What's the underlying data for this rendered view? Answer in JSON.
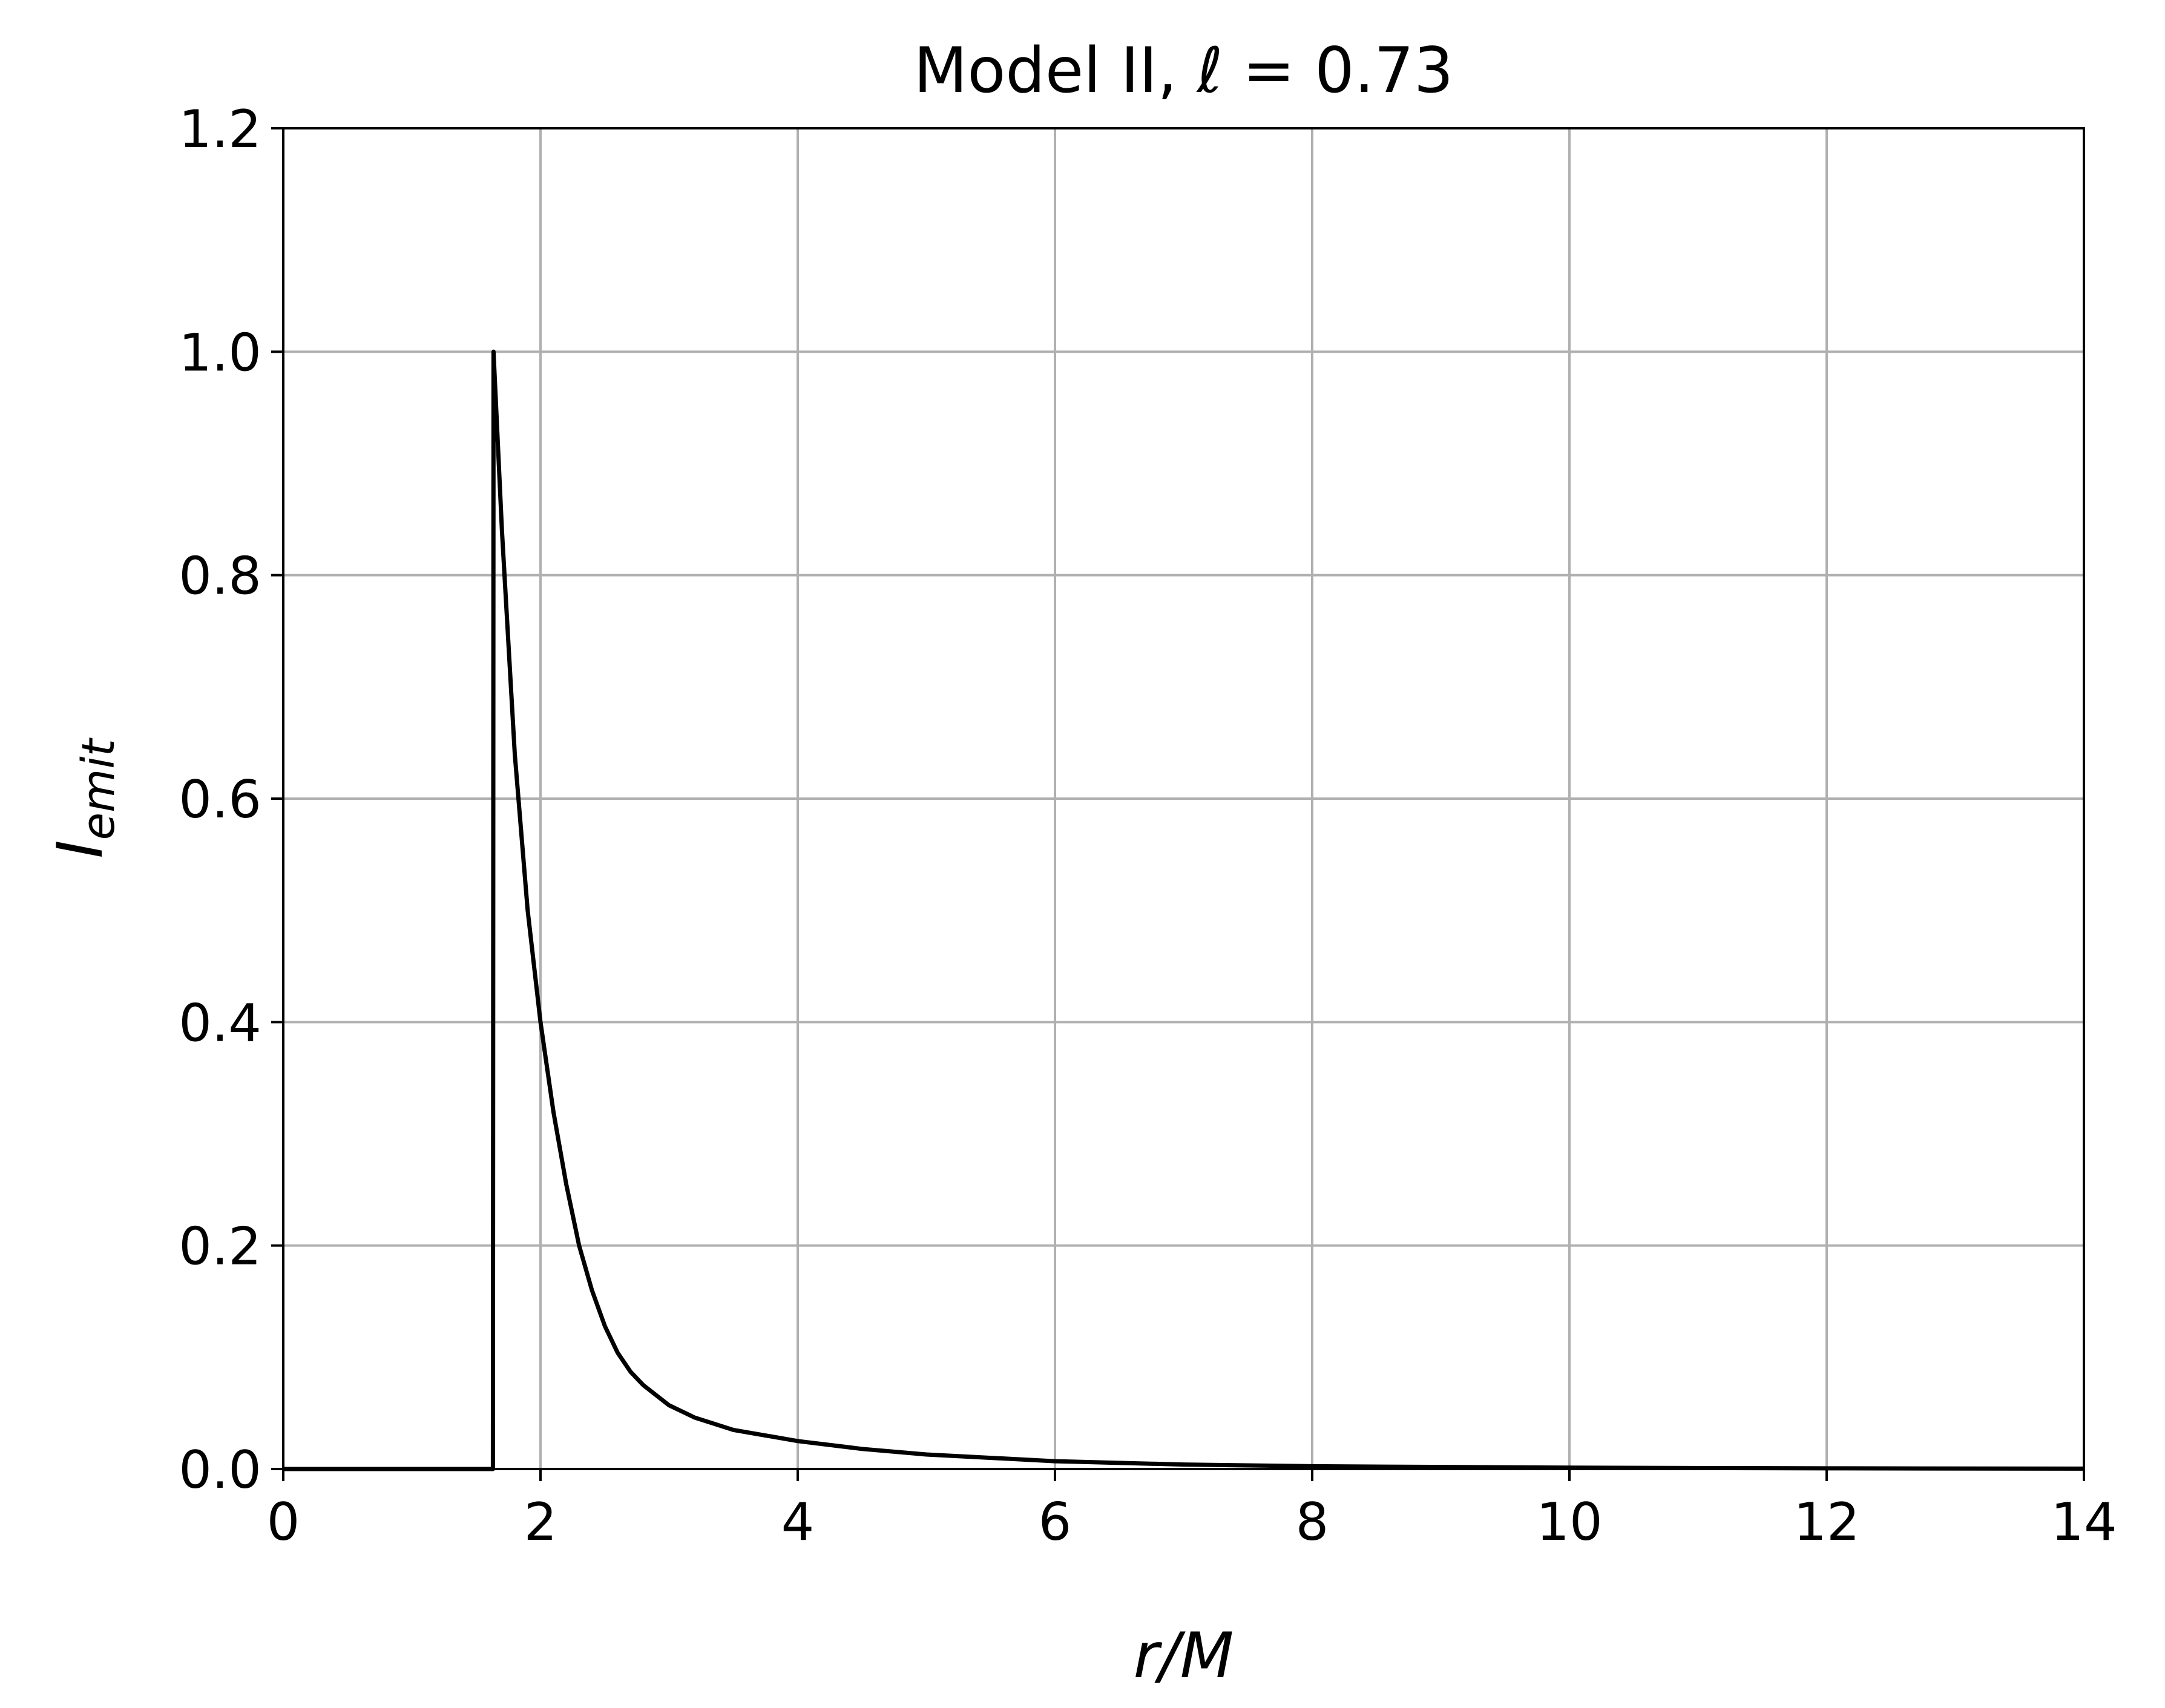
{
  "chart_data": {
    "type": "line",
    "title": "Model II, ℓ = 0.73",
    "xlabel": "r/M",
    "ylabel_main": "I",
    "ylabel_sub": "emit",
    "xlim": [
      0,
      14
    ],
    "ylim": [
      0,
      1.2
    ],
    "xticks": [
      0,
      2,
      4,
      6,
      8,
      10,
      12,
      14
    ],
    "xtick_labels": [
      "0",
      "2",
      "4",
      "6",
      "8",
      "10",
      "12",
      "14"
    ],
    "yticks": [
      0,
      0.2,
      0.4,
      0.6,
      0.8,
      1.0,
      1.2
    ],
    "ytick_labels": [
      "0.0",
      "0.2",
      "0.4",
      "0.6",
      "0.8",
      "1.0",
      "1.2"
    ],
    "grid": true,
    "line_color": "#000000",
    "grid_color": "#b0b0b0",
    "series": [
      {
        "x": [
          0,
          1.63,
          1.635,
          1.7,
          1.8,
          1.9,
          2.0,
          2.1,
          2.2,
          2.3,
          2.4,
          2.5,
          2.6,
          2.7,
          2.8,
          3.0,
          3.2,
          3.5,
          4.0,
          4.5,
          5.0,
          6.0,
          7.0,
          8.0,
          10.0,
          12.0,
          14.0
        ],
        "y": [
          0,
          0,
          1.0,
          0.84,
          0.64,
          0.5,
          0.4,
          0.32,
          0.255,
          0.2,
          0.16,
          0.128,
          0.104,
          0.087,
          0.075,
          0.057,
          0.046,
          0.035,
          0.025,
          0.018,
          0.013,
          0.007,
          0.004,
          0.0025,
          0.0012,
          0.0006,
          0.0003
        ]
      }
    ]
  }
}
